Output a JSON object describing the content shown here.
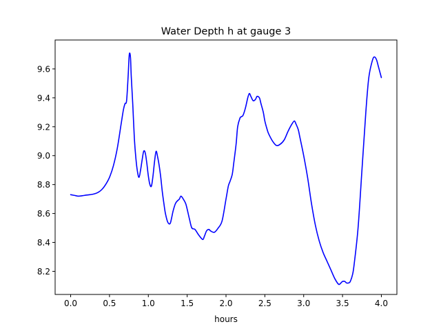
{
  "chart_data": {
    "type": "line",
    "title": "Water Depth h at gauge 3",
    "xlabel": "hours",
    "ylabel": "",
    "xlim": [
      -0.2,
      4.2
    ],
    "ylim": [
      8.04,
      9.8
    ],
    "xticks": [
      0.0,
      0.5,
      1.0,
      1.5,
      2.0,
      2.5,
      3.0,
      3.5,
      4.0
    ],
    "xtick_labels": [
      "0.0",
      "0.5",
      "1.0",
      "1.5",
      "2.0",
      "2.5",
      "3.0",
      "3.5",
      "4.0"
    ],
    "yticks": [
      8.2,
      8.4,
      8.6,
      8.8,
      9.0,
      9.2,
      9.4,
      9.6
    ],
    "ytick_labels": [
      "8.2",
      "8.4",
      "8.6",
      "8.8",
      "9.0",
      "9.2",
      "9.4",
      "9.6"
    ],
    "grid": false,
    "series": [
      {
        "color": "#0000ff",
        "x": [
          0.0,
          0.05,
          0.1,
          0.15,
          0.2,
          0.25,
          0.3,
          0.35,
          0.4,
          0.45,
          0.5,
          0.55,
          0.6,
          0.65,
          0.68,
          0.7,
          0.72,
          0.74,
          0.755,
          0.77,
          0.78,
          0.8,
          0.82,
          0.84,
          0.86,
          0.88,
          0.9,
          0.92,
          0.94,
          0.96,
          0.98,
          1.0,
          1.02,
          1.04,
          1.06,
          1.08,
          1.1,
          1.12,
          1.14,
          1.16,
          1.18,
          1.2,
          1.22,
          1.25,
          1.28,
          1.3,
          1.32,
          1.35,
          1.38,
          1.4,
          1.42,
          1.45,
          1.48,
          1.5,
          1.53,
          1.56,
          1.6,
          1.65,
          1.7,
          1.72,
          1.75,
          1.78,
          1.8,
          1.85,
          1.9,
          1.95,
          2.0,
          2.03,
          2.05,
          2.08,
          2.1,
          2.13,
          2.15,
          2.18,
          2.2,
          2.22,
          2.25,
          2.28,
          2.3,
          2.32,
          2.35,
          2.38,
          2.4,
          2.43,
          2.45,
          2.48,
          2.5,
          2.53,
          2.55,
          2.6,
          2.65,
          2.7,
          2.75,
          2.8,
          2.85,
          2.88,
          2.9,
          2.93,
          2.95,
          3.0,
          3.05,
          3.1,
          3.15,
          3.2,
          3.25,
          3.3,
          3.35,
          3.4,
          3.45,
          3.48,
          3.5,
          3.53,
          3.55,
          3.58,
          3.6,
          3.63,
          3.65,
          3.7,
          3.75,
          3.8,
          3.83,
          3.85,
          3.88,
          3.9,
          3.92,
          3.94,
          3.96,
          3.98,
          4.0
        ],
        "values": [
          8.73,
          8.725,
          8.72,
          8.723,
          8.727,
          8.73,
          8.735,
          8.745,
          8.765,
          8.8,
          8.85,
          8.93,
          9.05,
          9.22,
          9.32,
          9.36,
          9.38,
          9.55,
          9.7,
          9.68,
          9.55,
          9.35,
          9.12,
          8.98,
          8.89,
          8.85,
          8.9,
          8.97,
          9.03,
          9.02,
          8.95,
          8.86,
          8.8,
          8.79,
          8.86,
          8.96,
          9.03,
          8.99,
          8.93,
          8.85,
          8.75,
          8.67,
          8.6,
          8.54,
          8.53,
          8.57,
          8.62,
          8.67,
          8.69,
          8.7,
          8.72,
          8.7,
          8.67,
          8.63,
          8.56,
          8.5,
          8.49,
          8.45,
          8.42,
          8.44,
          8.48,
          8.49,
          8.48,
          8.47,
          8.5,
          8.55,
          8.7,
          8.79,
          8.82,
          8.87,
          8.95,
          9.08,
          9.2,
          9.26,
          9.27,
          9.28,
          9.33,
          9.4,
          9.43,
          9.41,
          9.38,
          9.39,
          9.41,
          9.4,
          9.36,
          9.3,
          9.24,
          9.18,
          9.15,
          9.1,
          9.07,
          9.08,
          9.11,
          9.17,
          9.22,
          9.24,
          9.22,
          9.18,
          9.13,
          9.0,
          8.85,
          8.67,
          8.52,
          8.41,
          8.33,
          8.27,
          8.21,
          8.15,
          8.11,
          8.12,
          8.13,
          8.13,
          8.12,
          8.12,
          8.13,
          8.18,
          8.25,
          8.5,
          8.9,
          9.3,
          9.5,
          9.58,
          9.65,
          9.68,
          9.68,
          9.66,
          9.62,
          9.58,
          9.54
        ]
      }
    ]
  }
}
